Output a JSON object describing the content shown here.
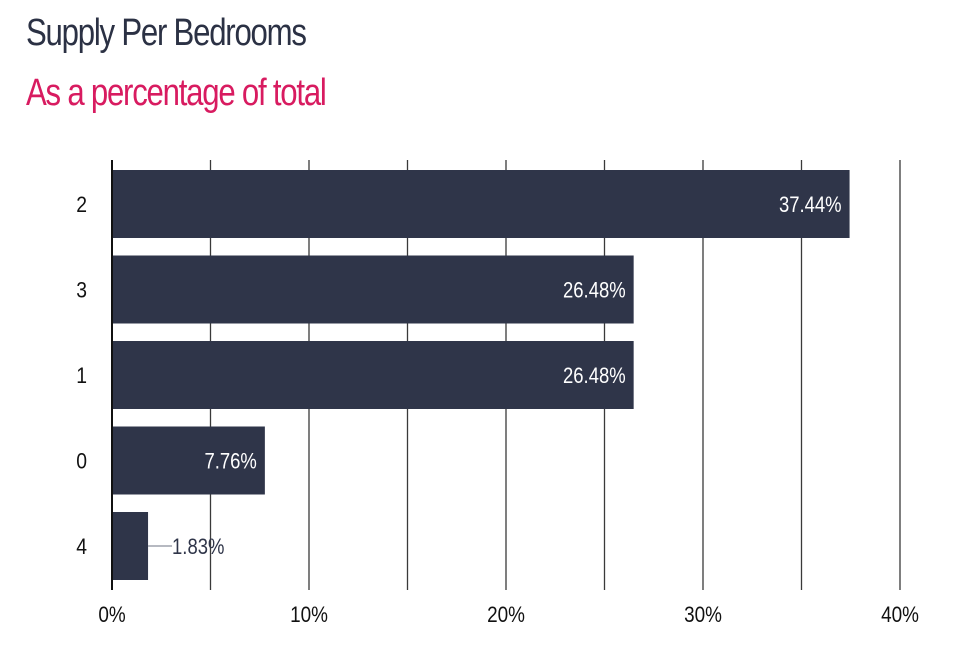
{
  "colors": {
    "title": "#2b3144",
    "subtitle": "#d81b60",
    "bar": "#2f3549",
    "grid": "#3a3a3a",
    "axis": "#111111",
    "label_inside": "#ffffff",
    "label_outside": "#2f3549",
    "tick": "#111111",
    "background": "#ffffff"
  },
  "chart_data": {
    "type": "bar",
    "orientation": "horizontal",
    "title": "Supply Per Bedrooms",
    "subtitle": "As a percentage of total",
    "categories": [
      "2",
      "3",
      "1",
      "0",
      "4"
    ],
    "values": [
      37.44,
      26.48,
      26.48,
      7.76,
      1.83
    ],
    "value_labels": [
      "37.44%",
      "26.48%",
      "26.48%",
      "7.76%",
      "1.83%"
    ],
    "xlim": [
      0,
      40
    ],
    "x_ticks": [
      0,
      10,
      20,
      30,
      40
    ],
    "x_tick_labels": [
      "0%",
      "10%",
      "20%",
      "30%",
      "40%"
    ],
    "grid": "vertical",
    "xlabel": "",
    "ylabel": "",
    "legend": "none"
  }
}
